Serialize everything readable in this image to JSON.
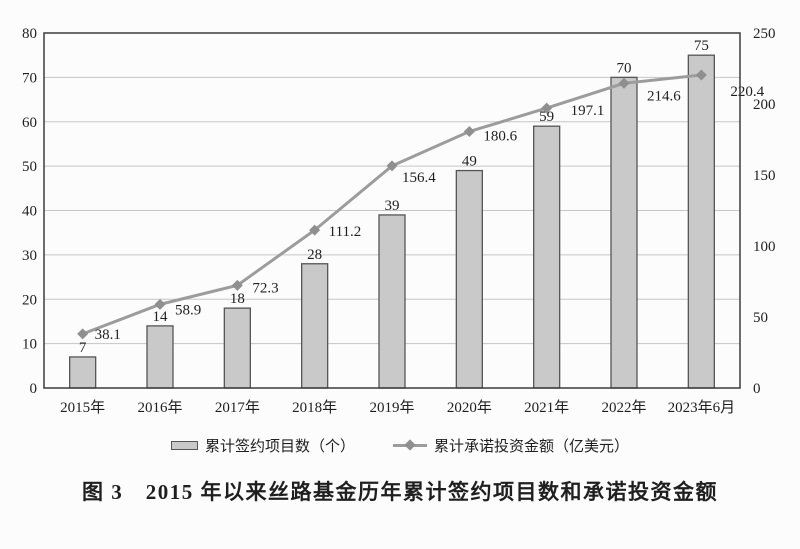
{
  "figure": {
    "caption": "图 3　2015 年以来丝路基金历年累计签约项目数和承诺投资金额"
  },
  "colors": {
    "background": "#fcfcfc",
    "bar_fill": "#c9c9c9",
    "bar_border": "#555555",
    "line": "#9c9c9c",
    "marker": "#8f8f8f",
    "grid": "#c6c6c6",
    "frame": "#3c3c3c",
    "text": "#1f1f1f"
  },
  "chart_data": {
    "type": "combo-bar-line",
    "categories": [
      "2015年",
      "2016年",
      "2017年",
      "2018年",
      "2019年",
      "2020年",
      "2021年",
      "2022年",
      "2023年6月"
    ],
    "series": [
      {
        "name": "累计签约项目数（个）",
        "type": "bar",
        "axis": "left",
        "values": [
          7,
          14,
          18,
          28,
          39,
          49,
          59,
          70,
          75
        ]
      },
      {
        "name": "累计承诺投资金额（亿美元）",
        "type": "line",
        "axis": "right",
        "values": [
          38.1,
          58.9,
          72.3,
          111.2,
          156.4,
          180.6,
          197.1,
          214.6,
          220.4
        ]
      }
    ],
    "left_axis": {
      "min": 0,
      "max": 80,
      "step": 10
    },
    "right_axis": {
      "min": 0,
      "max": 250,
      "step": 50
    },
    "grid": true,
    "data_labels": true,
    "legend_position": "bottom",
    "title": "图 3　2015 年以来丝路基金历年累计签约项目数和承诺投资金额"
  }
}
